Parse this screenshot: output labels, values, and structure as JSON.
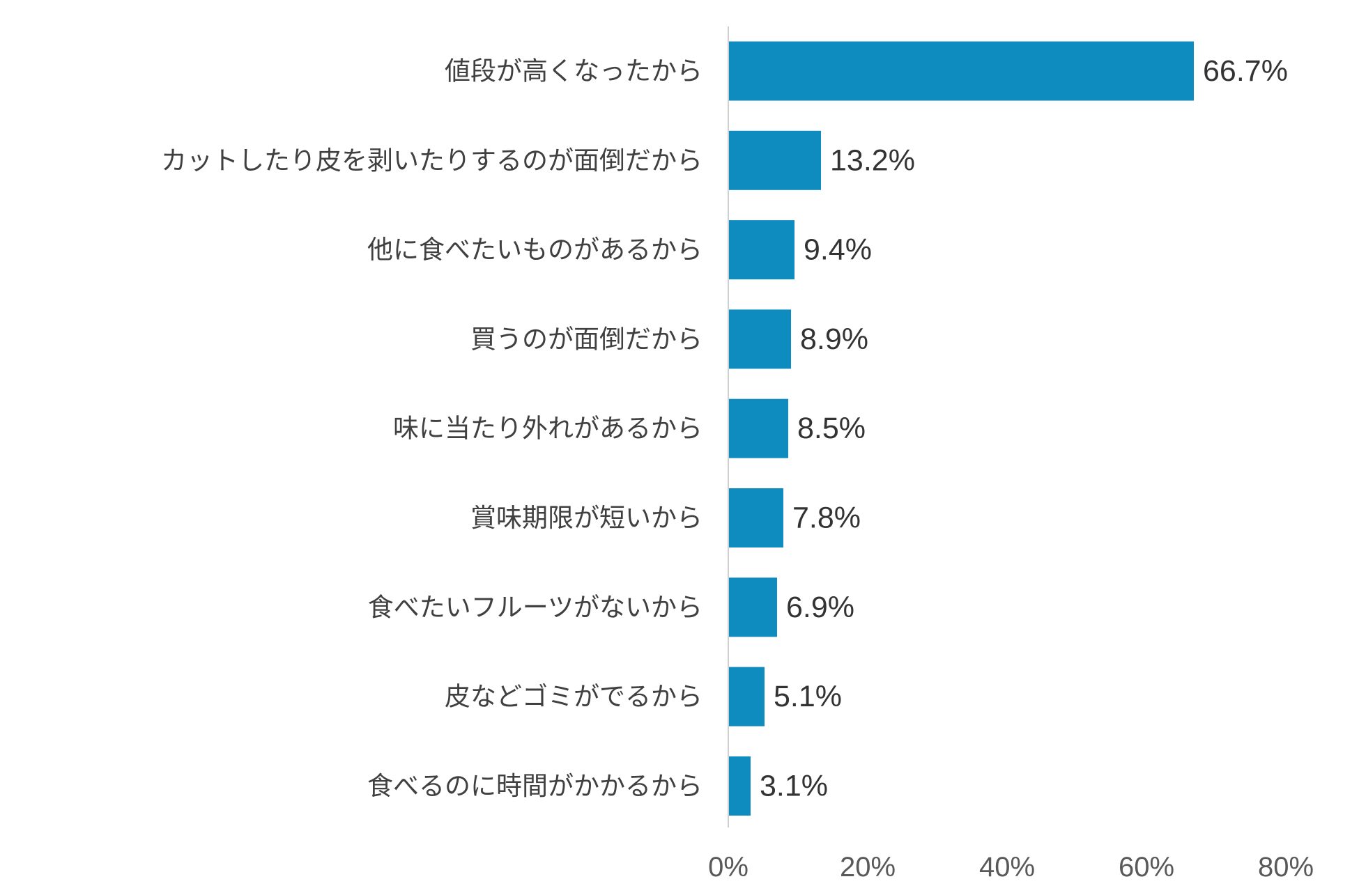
{
  "chart_data": {
    "type": "bar",
    "orientation": "horizontal",
    "categories": [
      "値段が高くなったから",
      "カットしたり皮を剥いたりするのが面倒だから",
      "他に食べたいものがあるから",
      "買うのが面倒だから",
      "味に当たり外れがあるから",
      "賞味期限が短いから",
      "食べたいフルーツがないから",
      "皮などゴミがでるから",
      "食べるのに時間がかかるから"
    ],
    "values": [
      66.7,
      13.2,
      9.4,
      8.9,
      8.5,
      7.8,
      6.9,
      5.1,
      3.1
    ],
    "value_labels": [
      "66.7%",
      "13.2%",
      "9.4%",
      "8.9%",
      "8.5%",
      "7.8%",
      "6.9%",
      "5.1%",
      "3.1%"
    ],
    "xlim": [
      0,
      80
    ],
    "xticks": [
      0,
      20,
      40,
      60,
      80
    ],
    "xtick_labels": [
      "0%",
      "20%",
      "40%",
      "60%",
      "80%"
    ],
    "title": "",
    "xlabel": "",
    "ylabel": "",
    "grid": false,
    "legend": "none",
    "bar_color": "#0e8bbf",
    "axis_color": "#d0d0d0"
  }
}
